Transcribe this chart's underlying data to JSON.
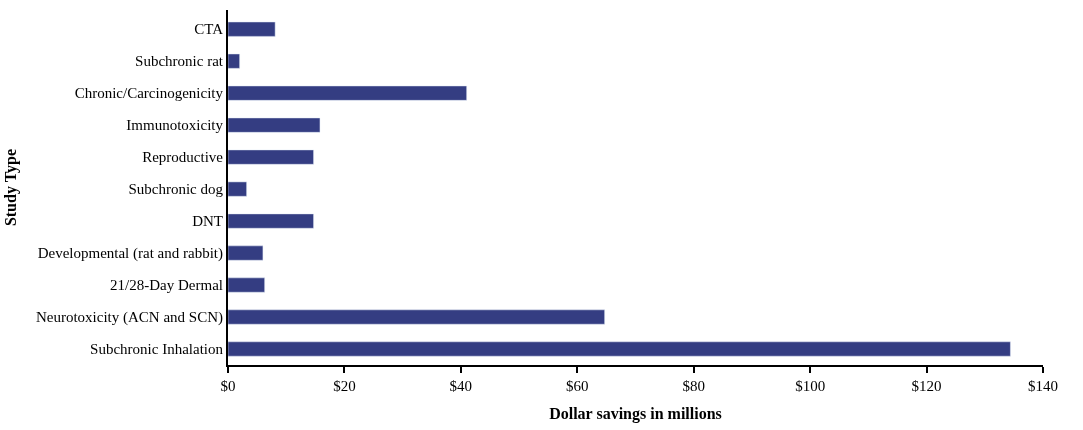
{
  "chart_data": {
    "type": "bar",
    "orientation": "horizontal",
    "xlabel": "Dollar savings in millions",
    "ylabel": "Study Type",
    "categories": [
      "CTA",
      "Subchronic rat",
      "Chronic/Carcinogenicity",
      "Immunotoxicity",
      "Reproductive",
      "Subchronic dog",
      "DNT",
      "Developmental (rat and rabbit)",
      "21/28-Day Dermal",
      "Neurotoxicity (ACN and SCN)",
      "Subchronic Inhalation"
    ],
    "values": [
      8.1,
      2.0,
      41,
      15.8,
      14.7,
      3.2,
      14.7,
      6.0,
      6.3,
      64.7,
      134.4
    ],
    "color": "#343d82",
    "xlim": [
      0,
      140
    ],
    "xticks": [
      {
        "value": 0,
        "label": "$0"
      },
      {
        "value": 20,
        "label": "$20"
      },
      {
        "value": 40,
        "label": "$40"
      },
      {
        "value": 60,
        "label": "$60"
      },
      {
        "value": 80,
        "label": "$80"
      },
      {
        "value": 100,
        "label": "$100"
      },
      {
        "value": 120,
        "label": "$120"
      },
      {
        "value": 140,
        "label": "$140"
      }
    ]
  }
}
